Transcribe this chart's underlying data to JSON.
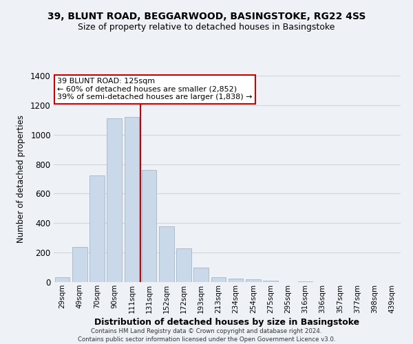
{
  "title_line1": "39, BLUNT ROAD, BEGGARWOOD, BASINGSTOKE, RG22 4SS",
  "title_line2": "Size of property relative to detached houses in Basingstoke",
  "xlabel": "Distribution of detached houses by size in Basingstoke",
  "ylabel": "Number of detached properties",
  "bar_labels": [
    "29sqm",
    "49sqm",
    "70sqm",
    "90sqm",
    "111sqm",
    "131sqm",
    "152sqm",
    "172sqm",
    "193sqm",
    "213sqm",
    "234sqm",
    "254sqm",
    "275sqm",
    "295sqm",
    "316sqm",
    "336sqm",
    "357sqm",
    "377sqm",
    "398sqm",
    "439sqm"
  ],
  "bar_values": [
    35,
    240,
    725,
    1110,
    1120,
    760,
    380,
    230,
    100,
    35,
    25,
    18,
    8,
    0,
    5,
    0,
    0,
    0,
    0,
    0
  ],
  "bar_color": "#c9d9ea",
  "bar_edgecolor": "#aabdce",
  "vline_color": "#cc0000",
  "vline_linewidth": 1.5,
  "annotation_title": "39 BLUNT ROAD: 125sqm",
  "annotation_line2": "← 60% of detached houses are smaller (2,852)",
  "annotation_line3": "39% of semi-detached houses are larger (1,838) →",
  "annotation_box_facecolor": "white",
  "annotation_box_edgecolor": "#cc0000",
  "ylim": [
    0,
    1400
  ],
  "yticks": [
    0,
    200,
    400,
    600,
    800,
    1000,
    1200,
    1400
  ],
  "footer_line1": "Contains HM Land Registry data © Crown copyright and database right 2024.",
  "footer_line2": "Contains public sector information licensed under the Open Government Licence v3.0.",
  "background_color": "#eef2f7",
  "grid_color": "#cdd5de"
}
